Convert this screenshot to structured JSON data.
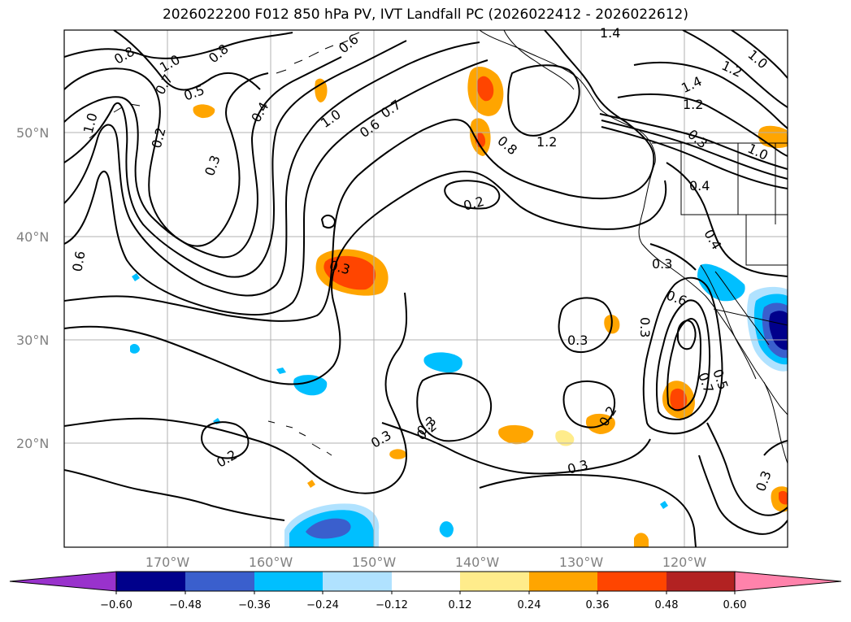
{
  "title": "2026022200 F012 850 hPa PV, IVT Landfall PC (2026022412 - 2026022612)",
  "map": {
    "latitude_labels": [
      "50°N",
      "40°N",
      "30°N",
      "20°N"
    ],
    "longitude_labels": [
      "170°W",
      "160°W",
      "150°W",
      "140°W",
      "130°W",
      "120°W"
    ],
    "contour_labels": [
      "0.8",
      "1.0",
      "0.8",
      "0.7",
      "0.5",
      "0.6",
      "0.4",
      "0.2",
      "1.0",
      "0.3",
      "1.0",
      "0.6",
      "0.7",
      "0.3",
      "0.8",
      "1.2",
      "1.4",
      "1.4",
      "1.2",
      "1.2",
      "1.0",
      "0.3",
      "1.0",
      "0.4",
      "0.4",
      "0.3",
      "0.2",
      "0.6",
      "0.6",
      "0.3",
      "0.3",
      "0.3",
      "0.5",
      "0.7",
      "0.2",
      "0.2",
      "0.3",
      "0.2",
      "0.3",
      "0.3"
    ],
    "shading_colors": {
      "neg_060": "#9932cc",
      "neg_048": "#00008b",
      "neg_036": "#3a5fcd",
      "neg_024": "#00bfff",
      "neg_012": "#b0e2ff",
      "pos_012": "#ffec8b",
      "pos_024": "#ffa500",
      "pos_036": "#ff4500",
      "pos_048": "#b22222",
      "pos_060": "#ff82ab"
    }
  },
  "colorbar": {
    "ticks": [
      "−0.60",
      "−0.48",
      "−0.36",
      "−0.24",
      "−0.12",
      "0.12",
      "0.24",
      "0.36",
      "0.48",
      "0.60"
    ],
    "colors": [
      "#9932cc",
      "#00008b",
      "#3a5fcd",
      "#00bfff",
      "#b0e2ff",
      "#ffffff",
      "#ffec8b",
      "#ffa500",
      "#ff4500",
      "#b22222",
      "#ff82ab"
    ]
  }
}
